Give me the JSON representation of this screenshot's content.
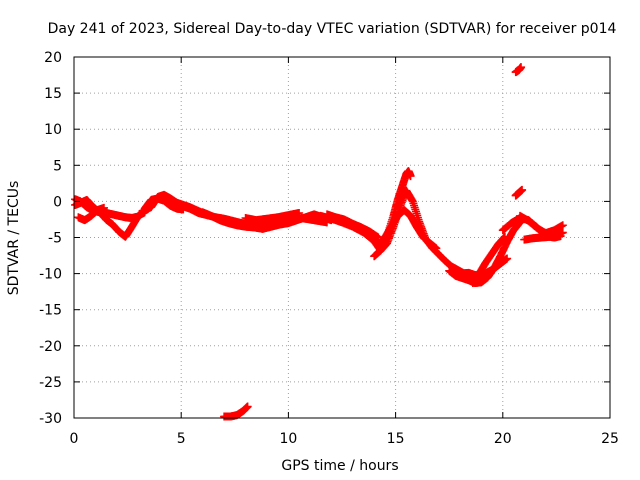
{
  "chart_data": {
    "type": "scatter",
    "title": "Day 241 of 2023, Sidereal Day-to-day VTEC variation (SDTVAR) for receiver p014",
    "xlabel": "GPS time / hours",
    "ylabel": "SDTVAR / TECUs",
    "xlim": [
      0,
      25
    ],
    "ylim": [
      -30,
      20
    ],
    "xticks": [
      0,
      5,
      10,
      15,
      20,
      25
    ],
    "yticks": [
      -30,
      -25,
      -20,
      -15,
      -10,
      -5,
      0,
      5,
      10,
      15,
      20
    ],
    "grid": true,
    "marker": "+",
    "series": [
      {
        "name": "SDTVAR",
        "color": "#ff0000",
        "tracks": [
          {
            "x": [
              0.05,
              0.3,
              0.6,
              0.9,
              1.2,
              1.5,
              1.8,
              2.1,
              2.4,
              2.7,
              3.0,
              3.3
            ],
            "y": [
              -0.5,
              -0.2,
              0.2,
              -0.8,
              -1.5,
              -2.5,
              -3.2,
              -4.2,
              -4.9,
              -3.5,
              -2.0,
              -1.5
            ]
          },
          {
            "x": [
              0.05,
              0.3,
              0.6,
              0.9,
              1.2,
              1.5,
              1.8,
              2.1,
              2.4,
              2.7,
              3.0
            ],
            "y": [
              0.3,
              0.0,
              -0.8,
              -1.3,
              -1.5,
              -1.6,
              -1.8,
              -2.0,
              -2.2,
              -2.3,
              -2.1
            ]
          },
          {
            "x": [
              0.2,
              0.5,
              0.8,
              1.1,
              1.4
            ],
            "y": [
              -2.2,
              -2.6,
              -2.0,
              -1.2,
              -0.9
            ]
          },
          {
            "x": [
              3.2,
              3.6,
              3.9,
              4.2,
              4.5,
              4.8,
              5.1,
              5.4,
              5.7,
              6.0
            ],
            "y": [
              -1.3,
              -0.8,
              0.6,
              0.9,
              0.4,
              -0.2,
              -0.5,
              -0.8,
              -1.2,
              -1.6
            ]
          },
          {
            "x": [
              3.3,
              3.6,
              3.9,
              4.2,
              4.5,
              4.8,
              5.1
            ],
            "y": [
              -1.0,
              0.2,
              0.4,
              0.1,
              -0.6,
              -1.0,
              -1.1
            ]
          },
          {
            "x": [
              5.0,
              5.4,
              5.8,
              6.2,
              6.6,
              7.0,
              7.4,
              7.8,
              8.2,
              8.6,
              9.0,
              9.4,
              9.8,
              10.2,
              10.6,
              11.0,
              11.4,
              11.8
            ],
            "y": [
              -0.6,
              -1.0,
              -1.6,
              -1.9,
              -2.2,
              -2.4,
              -2.7,
              -3.0,
              -3.1,
              -3.2,
              -3.3,
              -3.1,
              -2.9,
              -2.6,
              -2.3,
              -2.5,
              -2.7,
              -2.9
            ]
          },
          {
            "x": [
              6.0,
              6.4,
              6.8,
              7.2,
              7.6,
              8.0,
              8.4,
              8.8,
              9.2,
              9.6,
              10.0,
              10.4,
              10.8,
              11.2,
              11.6,
              12.0
            ],
            "y": [
              -1.5,
              -2.0,
              -2.6,
              -3.0,
              -3.3,
              -3.5,
              -3.6,
              -3.8,
              -3.5,
              -3.2,
              -3.0,
              -2.6,
              -2.2,
              -1.8,
              -2.2,
              -2.6
            ]
          },
          {
            "x": [
              8.0,
              8.5,
              9.0,
              9.5,
              10.0,
              10.5
            ],
            "y": [
              -2.3,
              -2.6,
              -2.4,
              -2.2,
              -1.9,
              -1.6
            ]
          },
          {
            "x": [
              11.5,
              12.0,
              12.5,
              13.0,
              13.5,
              14.0,
              14.3,
              14.6,
              14.9,
              15.2,
              15.5,
              15.8,
              16.1,
              16.4,
              16.7,
              17.0,
              17.3,
              17.6,
              17.9,
              18.2
            ],
            "y": [
              -2.0,
              -2.4,
              -2.9,
              -3.5,
              -4.3,
              -5.5,
              -6.8,
              -5.8,
              -3.5,
              -0.8,
              1.5,
              0.0,
              -2.8,
              -5.2,
              -6.4,
              -7.3,
              -8.2,
              -9.0,
              -9.5,
              -10.0
            ]
          },
          {
            "x": [
              11.8,
              12.2,
              12.6,
              13.0,
              13.4,
              13.8,
              14.2
            ],
            "y": [
              -1.8,
              -2.2,
              -2.5,
              -3.1,
              -3.6,
              -4.2,
              -5.0
            ]
          },
          {
            "x": [
              14.0,
              14.3,
              14.6,
              14.9,
              15.1,
              15.3,
              15.5,
              15.6,
              15.7
            ],
            "y": [
              -7.6,
              -6.8,
              -4.8,
              -2.0,
              0.2,
              2.0,
              3.8,
              4.2,
              3.5
            ]
          },
          {
            "x": [
              14.2,
              14.5,
              14.8,
              15.1,
              15.4,
              15.7,
              16.0,
              16.3,
              16.6,
              16.9
            ],
            "y": [
              -6.0,
              -5.0,
              -3.5,
              -2.0,
              -1.2,
              -2.0,
              -3.6,
              -5.0,
              -5.8,
              -6.5
            ]
          },
          {
            "x": [
              17.5,
              17.8,
              18.1,
              18.4,
              18.7,
              19.0,
              19.3,
              19.6,
              19.9,
              20.2,
              20.5,
              20.8
            ],
            "y": [
              -9.6,
              -10.3,
              -10.6,
              -10.9,
              -11.3,
              -11.2,
              -10.5,
              -9.2,
              -7.5,
              -5.6,
              -4.0,
              -2.9
            ]
          },
          {
            "x": [
              17.8,
              18.1,
              18.4,
              18.7,
              19.0,
              19.3,
              19.6,
              19.9,
              20.2
            ],
            "y": [
              -10.2,
              -10.0,
              -9.9,
              -10.2,
              -10.3,
              -9.8,
              -9.3,
              -8.6,
              -7.9
            ]
          },
          {
            "x": [
              18.6,
              18.9,
              19.2,
              19.5,
              19.8,
              20.1
            ],
            "y": [
              -11.3,
              -10.0,
              -8.5,
              -7.2,
              -5.9,
              -4.9
            ]
          },
          {
            "x": [
              20.0,
              20.4,
              20.8,
              21.2,
              21.6,
              22.0,
              22.4,
              22.7
            ],
            "y": [
              -4.0,
              -3.0,
              -2.3,
              -2.6,
              -3.6,
              -4.8,
              -5.0,
              -4.8
            ]
          },
          {
            "x": [
              20.8,
              21.2,
              21.6,
              22.0,
              22.4,
              22.8
            ],
            "y": [
              -2.0,
              -2.7,
              -3.7,
              -4.4,
              -4.0,
              -3.3
            ]
          },
          {
            "x": [
              21.0,
              21.4,
              21.8,
              22.2,
              22.6,
              22.8
            ],
            "y": [
              -5.3,
              -5.1,
              -5.0,
              -4.9,
              -4.6,
              -4.3
            ]
          },
          {
            "x": [
              20.6,
              20.75,
              20.9
            ],
            "y": [
              0.8,
              1.2,
              1.6
            ]
          },
          {
            "x": [
              20.6,
              20.75,
              20.85
            ],
            "y": [
              17.9,
              18.2,
              18.6
            ]
          },
          {
            "x": [
              7.0,
              7.3,
              7.6,
              7.9,
              8.1
            ],
            "y": [
              -29.8,
              -29.8,
              -29.6,
              -29.0,
              -28.4
            ]
          }
        ]
      }
    ]
  }
}
